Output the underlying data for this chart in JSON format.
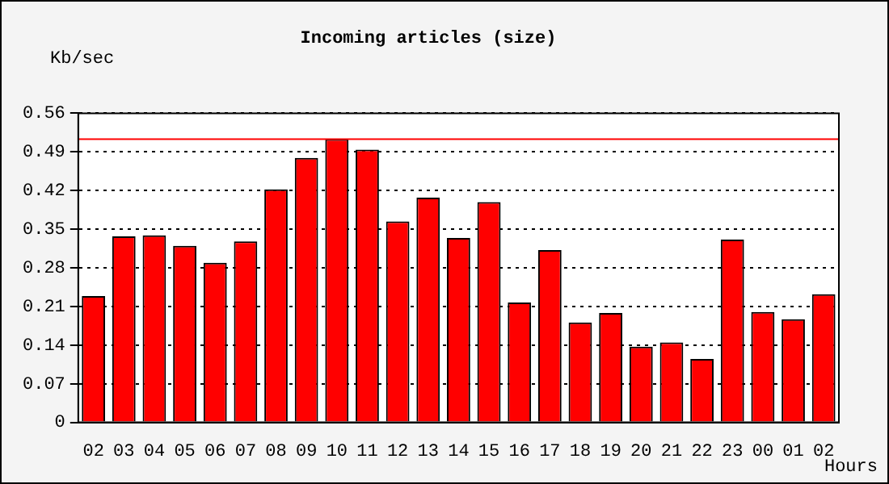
{
  "chart_data": {
    "type": "bar",
    "title": "Incoming articles (size)",
    "xlabel": "Hours",
    "ylabel": "Kb/sec",
    "categories": [
      "02",
      "03",
      "04",
      "05",
      "06",
      "07",
      "08",
      "09",
      "10",
      "11",
      "12",
      "13",
      "14",
      "15",
      "16",
      "17",
      "18",
      "19",
      "20",
      "21",
      "22",
      "23",
      "00",
      "01",
      "02"
    ],
    "values": [
      0.229,
      0.337,
      0.339,
      0.32,
      0.289,
      0.328,
      0.422,
      0.479,
      0.513,
      0.494,
      0.364,
      0.407,
      0.334,
      0.399,
      0.217,
      0.312,
      0.181,
      0.198,
      0.137,
      0.145,
      0.115,
      0.331,
      0.2,
      0.187,
      0.232
    ],
    "color": "#ff0000",
    "ylim": [
      0,
      0.56
    ],
    "yticks": [
      0,
      0.07,
      0.14,
      0.21,
      0.28,
      0.35,
      0.42,
      0.49,
      0.56
    ],
    "grid": "y",
    "legend": false,
    "ref_lines": [
      {
        "axis": "y",
        "value": 0.513,
        "color": "#ff0000"
      }
    ]
  }
}
